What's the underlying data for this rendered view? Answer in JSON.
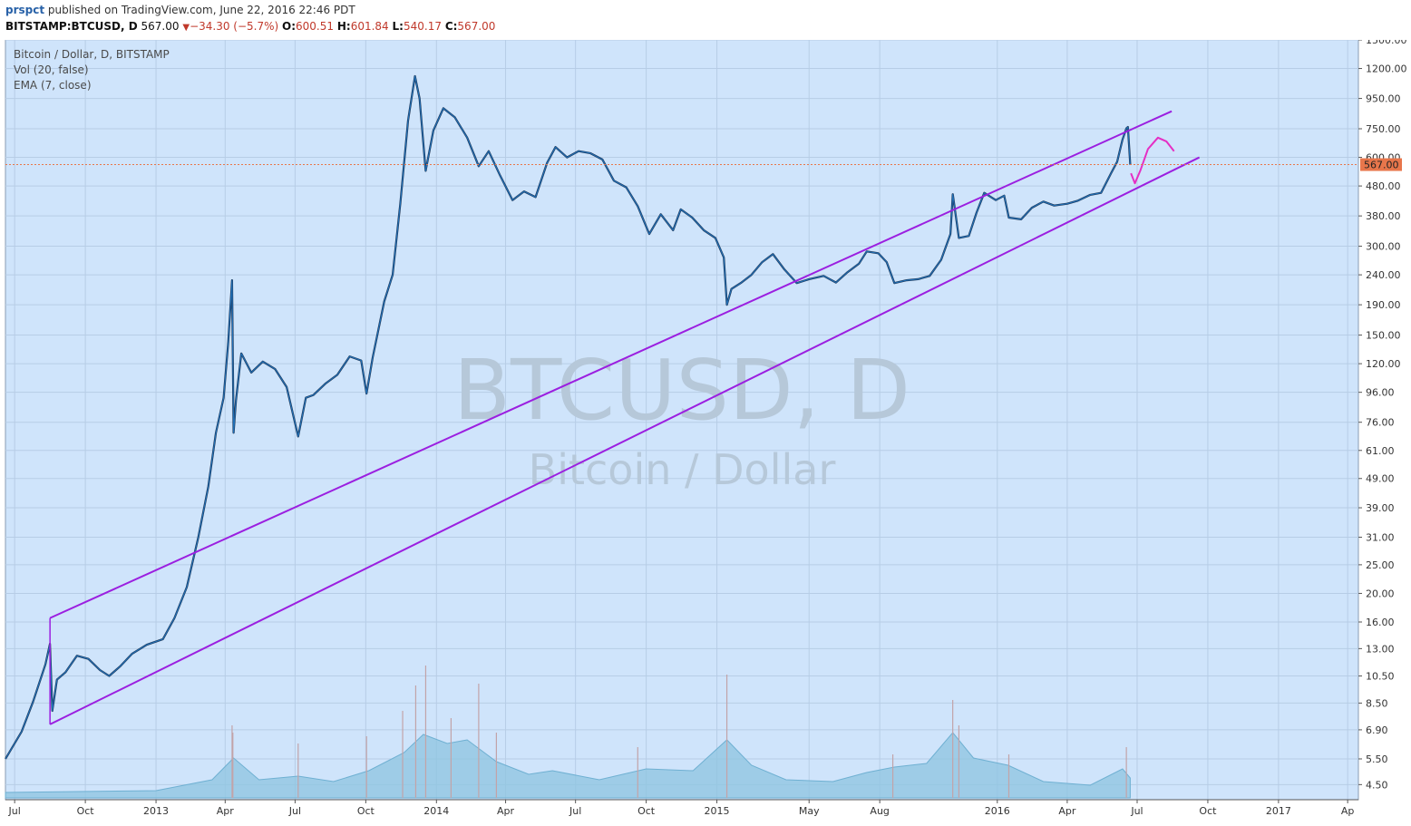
{
  "header": {
    "user": "prspct",
    "published": "published on TradingView.com, June 22, 2016 22:46 PDT",
    "symbol": "BITSTAMP:BTCUSD, D",
    "last": "567.00",
    "change_arrow": "▼",
    "change": "−34.30 (−5.7%)",
    "o_label": "O:",
    "o": "600.51",
    "h_label": "H:",
    "h": "601.84",
    "l_label": "L:",
    "l": "540.17",
    "c_label": "C:",
    "c": "567.00"
  },
  "legend": {
    "title": "Bitcoin / Dollar, D, BITSTAMP",
    "vol": "Vol (20, false)",
    "ema": "EMA (7, close)"
  },
  "watermark": {
    "symbol": "BTCUSD, D",
    "name": "Bitcoin / Dollar"
  },
  "colors": {
    "background": "#cfe4fb",
    "price_line": "#1f6eb5",
    "channel": "#9b1fe0",
    "projection": "#e52fc4",
    "last_price_tag": "#e8764b",
    "volume": "#8ec4e0"
  },
  "chart_data": {
    "type": "line",
    "yscale": "log",
    "ylim": [
      4,
      1500
    ],
    "xlim": [
      "2012-06-19",
      "2017-04-15"
    ],
    "x_ticks": [
      {
        "date": "2012-07-01",
        "label": "Jul"
      },
      {
        "date": "2012-10-01",
        "label": "Oct"
      },
      {
        "date": "2013-01-01",
        "label": "2013"
      },
      {
        "date": "2013-04-01",
        "label": "Apr"
      },
      {
        "date": "2013-07-01",
        "label": "Jul"
      },
      {
        "date": "2013-10-01",
        "label": "Oct"
      },
      {
        "date": "2014-01-01",
        "label": "2014"
      },
      {
        "date": "2014-04-01",
        "label": "Apr"
      },
      {
        "date": "2014-07-01",
        "label": "Jul"
      },
      {
        "date": "2014-10-01",
        "label": "Oct"
      },
      {
        "date": "2015-01-01",
        "label": "2015"
      },
      {
        "date": "2015-05-01",
        "label": "May"
      },
      {
        "date": "2015-08-01",
        "label": "Aug"
      },
      {
        "date": "2016-01-01",
        "label": "2016"
      },
      {
        "date": "2016-04-01",
        "label": "Apr"
      },
      {
        "date": "2016-07-01",
        "label": "Jul"
      },
      {
        "date": "2016-10-01",
        "label": "Oct"
      },
      {
        "date": "2017-01-01",
        "label": "2017"
      },
      {
        "date": "2017-04-01",
        "label": "Ap"
      }
    ],
    "y_ticks": [
      "1500.00",
      "1200.00",
      "950.00",
      "750.00",
      "600.00",
      "480.00",
      "380.00",
      "300.00",
      "240.00",
      "190.00",
      "150.00",
      "120.00",
      "96.00",
      "76.00",
      "61.00",
      "49.00",
      "39.00",
      "31.00",
      "25.00",
      "20.00",
      "16.00",
      "13.00",
      "10.50",
      "8.50",
      "6.90",
      "5.50",
      "4.50"
    ],
    "last_price": 567.0,
    "last_price_label": "567.00",
    "series": [
      {
        "points": [
          [
            "2012-06-19",
            5.5
          ],
          [
            "2012-07-10",
            6.8
          ],
          [
            "2012-07-25",
            8.6
          ],
          [
            "2012-08-10",
            11.5
          ],
          [
            "2012-08-16",
            13.5
          ],
          [
            "2012-08-19",
            8.0
          ],
          [
            "2012-08-25",
            10.2
          ],
          [
            "2012-09-05",
            10.8
          ],
          [
            "2012-09-20",
            12.3
          ],
          [
            "2012-10-05",
            12.0
          ],
          [
            "2012-10-20",
            11.0
          ],
          [
            "2012-11-01",
            10.5
          ],
          [
            "2012-11-15",
            11.3
          ],
          [
            "2012-12-01",
            12.5
          ],
          [
            "2012-12-20",
            13.4
          ],
          [
            "2013-01-10",
            14.0
          ],
          [
            "2013-01-25",
            16.5
          ],
          [
            "2013-02-10",
            21.0
          ],
          [
            "2013-02-25",
            31.0
          ],
          [
            "2013-03-10",
            46.0
          ],
          [
            "2013-03-20",
            70.0
          ],
          [
            "2013-03-30",
            92.0
          ],
          [
            "2013-04-05",
            142.0
          ],
          [
            "2013-04-10",
            230.0
          ],
          [
            "2013-04-12",
            70.0
          ],
          [
            "2013-04-15",
            90.0
          ],
          [
            "2013-04-22",
            130.0
          ],
          [
            "2013-05-05",
            112.0
          ],
          [
            "2013-05-20",
            122.0
          ],
          [
            "2013-06-05",
            115.0
          ],
          [
            "2013-06-20",
            100.0
          ],
          [
            "2013-07-05",
            68.0
          ],
          [
            "2013-07-15",
            92.0
          ],
          [
            "2013-07-25",
            94.0
          ],
          [
            "2013-08-10",
            103.0
          ],
          [
            "2013-08-25",
            110.0
          ],
          [
            "2013-09-10",
            127.0
          ],
          [
            "2013-09-25",
            123.0
          ],
          [
            "2013-10-02",
            95.0
          ],
          [
            "2013-10-10",
            126.0
          ],
          [
            "2013-10-25",
            195.0
          ],
          [
            "2013-11-05",
            240.0
          ],
          [
            "2013-11-15",
            420.0
          ],
          [
            "2013-11-25",
            800.0
          ],
          [
            "2013-12-04",
            1130.0
          ],
          [
            "2013-12-10",
            950.0
          ],
          [
            "2013-12-18",
            540.0
          ],
          [
            "2013-12-28",
            740.0
          ],
          [
            "2014-01-10",
            880.0
          ],
          [
            "2014-01-25",
            820.0
          ],
          [
            "2014-02-10",
            700.0
          ],
          [
            "2014-02-25",
            560.0
          ],
          [
            "2014-03-10",
            630.0
          ],
          [
            "2014-03-25",
            520.0
          ],
          [
            "2014-04-10",
            430.0
          ],
          [
            "2014-04-25",
            460.0
          ],
          [
            "2014-05-10",
            440.0
          ],
          [
            "2014-05-25",
            575.0
          ],
          [
            "2014-06-05",
            650.0
          ],
          [
            "2014-06-20",
            600.0
          ],
          [
            "2014-07-05",
            630.0
          ],
          [
            "2014-07-20",
            620.0
          ],
          [
            "2014-08-05",
            590.0
          ],
          [
            "2014-08-20",
            500.0
          ],
          [
            "2014-09-05",
            475.0
          ],
          [
            "2014-09-20",
            410.0
          ],
          [
            "2014-10-05",
            330.0
          ],
          [
            "2014-10-20",
            385.0
          ],
          [
            "2014-11-05",
            340.0
          ],
          [
            "2014-11-15",
            400.0
          ],
          [
            "2014-11-30",
            375.0
          ],
          [
            "2014-12-15",
            340.0
          ],
          [
            "2014-12-30",
            320.0
          ],
          [
            "2015-01-10",
            275.0
          ],
          [
            "2015-01-14",
            190.0
          ],
          [
            "2015-01-20",
            215.0
          ],
          [
            "2015-02-01",
            225.0
          ],
          [
            "2015-02-15",
            240.0
          ],
          [
            "2015-03-01",
            265.0
          ],
          [
            "2015-03-15",
            282.0
          ],
          [
            "2015-03-30",
            250.0
          ],
          [
            "2015-04-15",
            225.0
          ],
          [
            "2015-05-01",
            232.0
          ],
          [
            "2015-05-20",
            238.0
          ],
          [
            "2015-06-05",
            226.0
          ],
          [
            "2015-06-20",
            245.0
          ],
          [
            "2015-07-05",
            262.0
          ],
          [
            "2015-07-15",
            288.0
          ],
          [
            "2015-07-30",
            284.0
          ],
          [
            "2015-08-10",
            265.0
          ],
          [
            "2015-08-20",
            225.0
          ],
          [
            "2015-09-05",
            230.0
          ],
          [
            "2015-09-20",
            232.0
          ],
          [
            "2015-10-05",
            238.0
          ],
          [
            "2015-10-20",
            270.0
          ],
          [
            "2015-11-01",
            330.0
          ],
          [
            "2015-11-04",
            450.0
          ],
          [
            "2015-11-12",
            320.0
          ],
          [
            "2015-11-25",
            325.0
          ],
          [
            "2015-12-05",
            390.0
          ],
          [
            "2015-12-15",
            455.0
          ],
          [
            "2015-12-30",
            430.0
          ],
          [
            "2016-01-10",
            445.0
          ],
          [
            "2016-01-16",
            375.0
          ],
          [
            "2016-02-01",
            370.0
          ],
          [
            "2016-02-15",
            405.0
          ],
          [
            "2016-03-01",
            425.0
          ],
          [
            "2016-03-15",
            412.0
          ],
          [
            "2016-04-01",
            418.0
          ],
          [
            "2016-04-15",
            428.0
          ],
          [
            "2016-05-01",
            448.0
          ],
          [
            "2016-05-15",
            455.0
          ],
          [
            "2016-05-28",
            530.0
          ],
          [
            "2016-06-05",
            580.0
          ],
          [
            "2016-06-12",
            690.0
          ],
          [
            "2016-06-17",
            752.0
          ],
          [
            "2016-06-19",
            760.0
          ],
          [
            "2016-06-22",
            567.0
          ]
        ]
      }
    ],
    "channel": [
      {
        "from": [
          "2012-08-16",
          16.5
        ],
        "to": [
          "2016-08-15",
          860.0
        ]
      },
      {
        "from": [
          "2012-08-16",
          7.2
        ],
        "to": [
          "2016-09-20",
          600.0
        ]
      }
    ],
    "projection": [
      [
        "2016-06-23",
        530
      ],
      [
        "2016-06-28",
        490
      ],
      [
        "2016-07-05",
        540
      ],
      [
        "2016-07-15",
        640
      ],
      [
        "2016-07-28",
        700
      ],
      [
        "2016-08-08",
        680
      ],
      [
        "2016-08-18",
        630
      ]
    ],
    "volume": {
      "base": [
        [
          "2012-06-19",
          0.3
        ],
        [
          "2013-01-01",
          0.4
        ],
        [
          "2013-03-15",
          1.0
        ],
        [
          "2013-04-12",
          2.2
        ],
        [
          "2013-05-15",
          1.0
        ],
        [
          "2013-07-05",
          1.2
        ],
        [
          "2013-08-20",
          0.9
        ],
        [
          "2013-10-05",
          1.5
        ],
        [
          "2013-11-20",
          2.5
        ],
        [
          "2013-12-15",
          3.5
        ],
        [
          "2014-01-15",
          3.0
        ],
        [
          "2014-02-10",
          3.2
        ],
        [
          "2014-03-20",
          2.0
        ],
        [
          "2014-05-01",
          1.3
        ],
        [
          "2014-06-01",
          1.5
        ],
        [
          "2014-08-01",
          1.0
        ],
        [
          "2014-10-01",
          1.6
        ],
        [
          "2014-12-01",
          1.5
        ],
        [
          "2015-01-14",
          3.2
        ],
        [
          "2015-02-15",
          1.8
        ],
        [
          "2015-04-01",
          1.0
        ],
        [
          "2015-06-01",
          0.9
        ],
        [
          "2015-07-15",
          1.4
        ],
        [
          "2015-08-20",
          1.7
        ],
        [
          "2015-10-01",
          1.9
        ],
        [
          "2015-11-04",
          3.6
        ],
        [
          "2015-12-01",
          2.2
        ],
        [
          "2016-01-15",
          1.8
        ],
        [
          "2016-03-01",
          0.9
        ],
        [
          "2016-05-01",
          0.7
        ],
        [
          "2016-06-12",
          1.6
        ],
        [
          "2016-06-22",
          1.1
        ]
      ],
      "spikes": [
        [
          "2013-04-10",
          4.0
        ],
        [
          "2013-04-11",
          3.6
        ],
        [
          "2013-07-05",
          3.0
        ],
        [
          "2013-10-02",
          3.4
        ],
        [
          "2013-11-18",
          4.8
        ],
        [
          "2013-12-05",
          6.2
        ],
        [
          "2013-12-18",
          7.3
        ],
        [
          "2014-01-20",
          4.4
        ],
        [
          "2014-02-25",
          6.3
        ],
        [
          "2014-03-20",
          3.6
        ],
        [
          "2014-09-20",
          2.8
        ],
        [
          "2015-01-14",
          6.8
        ],
        [
          "2015-08-18",
          2.4
        ],
        [
          "2015-11-04",
          5.4
        ],
        [
          "2015-11-12",
          4.0
        ],
        [
          "2016-01-16",
          2.4
        ],
        [
          "2016-06-17",
          2.8
        ]
      ]
    }
  }
}
